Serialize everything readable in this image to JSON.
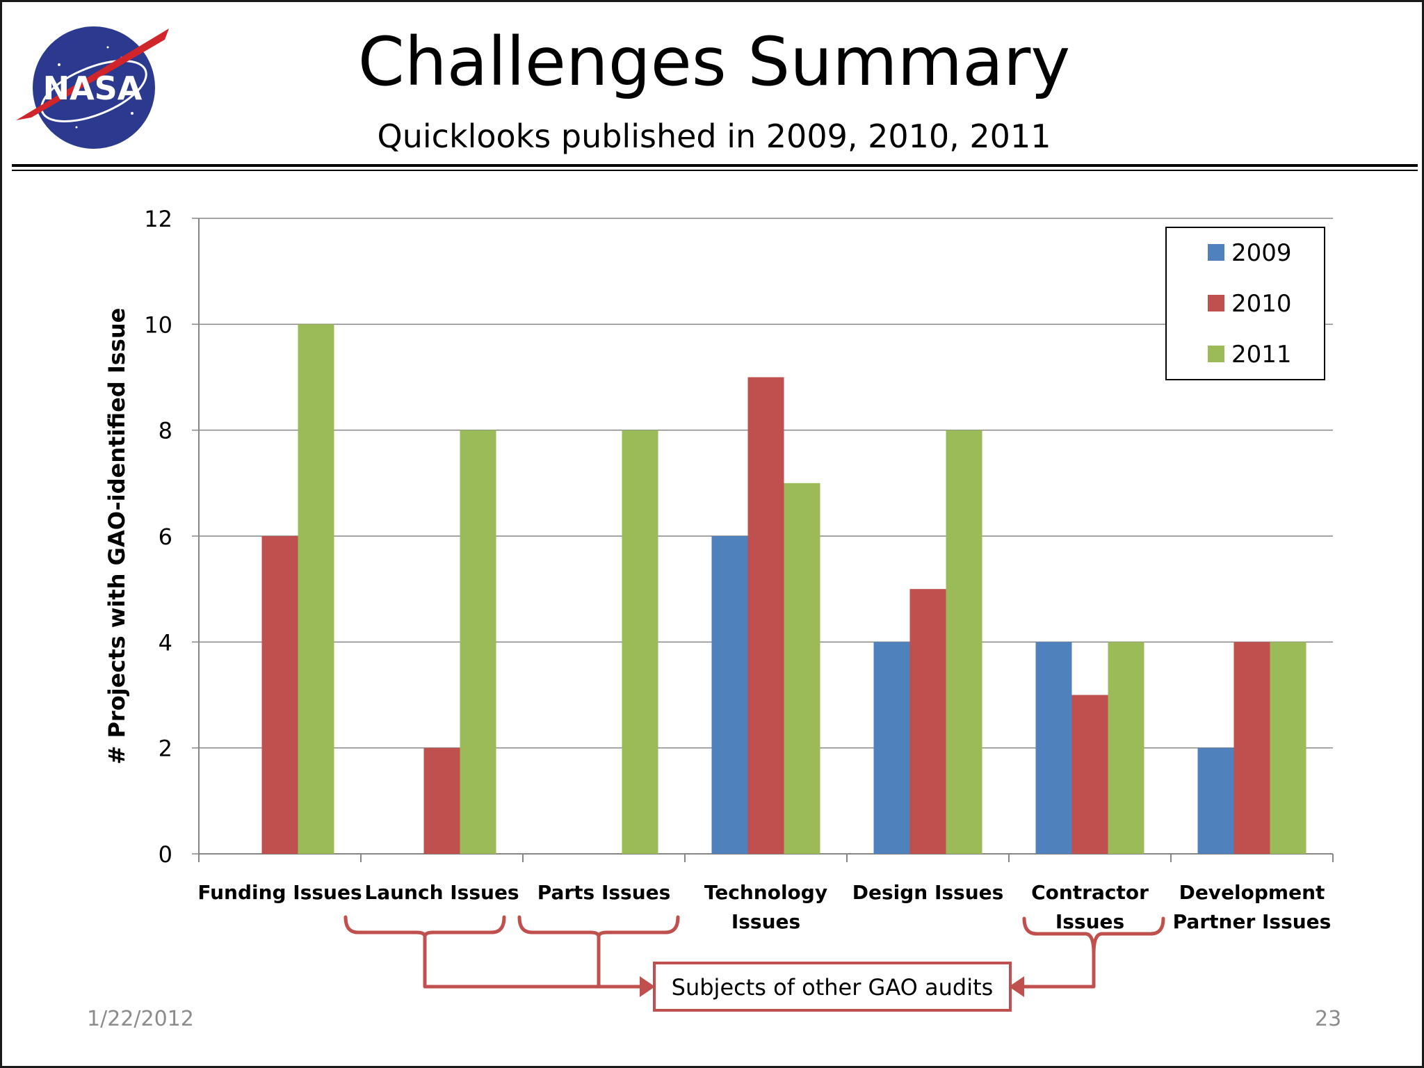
{
  "slide": {
    "title": "Challenges Summary",
    "subtitle": "Quicklooks published in 2009, 2010, 2011",
    "logo_text": "NASA",
    "date": "1/22/2012",
    "page_number": "23",
    "callout": "Subjects of other GAO audits"
  },
  "chart_data": {
    "type": "bar",
    "ylabel": "# Projects with GAO-identified Issue",
    "ylim": [
      0,
      12
    ],
    "yticks": [
      0,
      2,
      4,
      6,
      8,
      10,
      12
    ],
    "grid": true,
    "legend_position": "top-right",
    "categories": [
      [
        "Funding Issues"
      ],
      [
        "Launch Issues"
      ],
      [
        "Parts Issues"
      ],
      [
        "Technology",
        "Issues"
      ],
      [
        "Design Issues"
      ],
      [
        "Contractor",
        "Issues"
      ],
      [
        "Development",
        "Partner Issues"
      ]
    ],
    "series": [
      {
        "name": "2009",
        "color": "#4f81bd",
        "values": [
          0,
          0,
          0,
          6,
          4,
          4,
          2
        ]
      },
      {
        "name": "2010",
        "color": "#c0504d",
        "values": [
          6,
          2,
          0,
          9,
          5,
          3,
          4
        ]
      },
      {
        "name": "2011",
        "color": "#9bbb59",
        "values": [
          10,
          8,
          8,
          7,
          8,
          4,
          4
        ]
      }
    ]
  },
  "colors": {
    "callout": "#c0504d",
    "grid": "#868686"
  }
}
